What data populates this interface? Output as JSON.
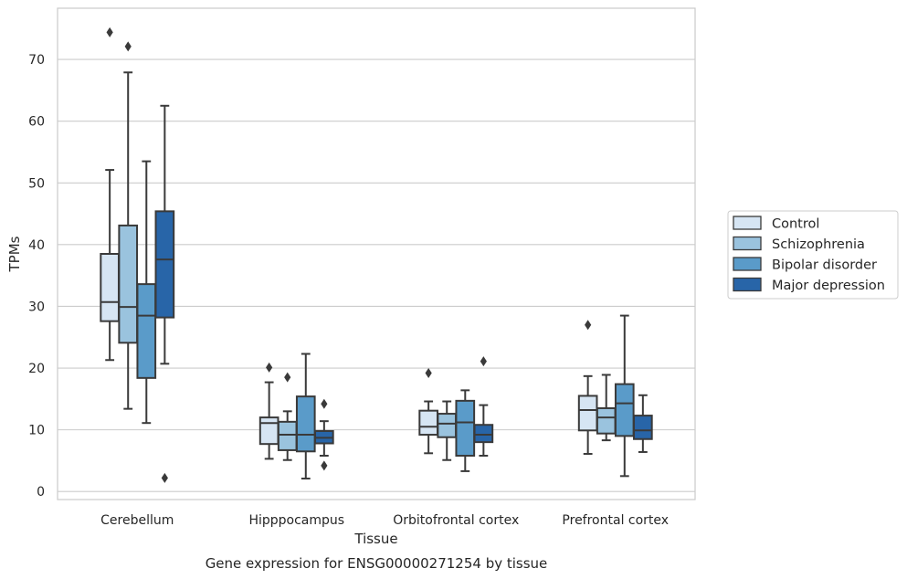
{
  "chart_data": {
    "type": "box",
    "title": "",
    "caption": "Gene expression for ENSG00000271254 by tissue",
    "xlabel": "Tissue",
    "ylabel": "TPMs",
    "ylim": [
      -1.3,
      78.3
    ],
    "yticks": [
      0,
      10,
      20,
      30,
      40,
      50,
      60,
      70
    ],
    "grid": true,
    "legend_position": "right, outside plot area",
    "categories": [
      "Cerebellum",
      "Hipppocampus",
      "Orbitofrontal cortex",
      "Prefrontal cortex"
    ],
    "series": [
      {
        "name": "Control",
        "color": "#d6e5f3",
        "boxes": [
          {
            "whislo": 21.3,
            "q1": 27.6,
            "med": 30.7,
            "q3": 38.5,
            "whishi": 52.1,
            "fliers": [
              74.4
            ]
          },
          {
            "whislo": 5.3,
            "q1": 7.7,
            "med": 11.1,
            "q3": 12.0,
            "whishi": 17.7,
            "fliers": [
              20.1
            ]
          },
          {
            "whislo": 6.2,
            "q1": 9.2,
            "med": 10.5,
            "q3": 13.1,
            "whishi": 14.6,
            "fliers": [
              19.2
            ]
          },
          {
            "whislo": 6.1,
            "q1": 9.9,
            "med": 13.2,
            "q3": 15.5,
            "whishi": 18.7,
            "fliers": [
              27.0
            ]
          }
        ]
      },
      {
        "name": "Schizophrenia",
        "color": "#9ac3de",
        "boxes": [
          {
            "whislo": 13.4,
            "q1": 24.1,
            "med": 29.9,
            "q3": 43.1,
            "whishi": 67.9,
            "fliers": [
              72.1
            ]
          },
          {
            "whislo": 5.1,
            "q1": 6.7,
            "med": 9.2,
            "q3": 11.3,
            "whishi": 13.0,
            "fliers": [
              18.5
            ]
          },
          {
            "whislo": 5.1,
            "q1": 8.8,
            "med": 11.0,
            "q3": 12.6,
            "whishi": 14.6,
            "fliers": []
          },
          {
            "whislo": 8.3,
            "q1": 9.4,
            "med": 12.0,
            "q3": 13.5,
            "whishi": 18.9,
            "fliers": []
          }
        ]
      },
      {
        "name": "Bipolar disorder",
        "color": "#5a9bc9",
        "boxes": [
          {
            "whislo": 11.1,
            "q1": 18.4,
            "med": 28.5,
            "q3": 33.6,
            "whishi": 53.5,
            "fliers": []
          },
          {
            "whislo": 2.1,
            "q1": 6.5,
            "med": 9.2,
            "q3": 15.4,
            "whishi": 22.3,
            "fliers": []
          },
          {
            "whislo": 3.3,
            "q1": 5.8,
            "med": 11.2,
            "q3": 14.7,
            "whishi": 16.4,
            "fliers": []
          },
          {
            "whislo": 2.5,
            "q1": 9.0,
            "med": 14.3,
            "q3": 17.4,
            "whishi": 28.5,
            "fliers": []
          }
        ]
      },
      {
        "name": "Major depression",
        "color": "#2865a8",
        "boxes": [
          {
            "whislo": 20.7,
            "q1": 28.2,
            "med": 37.6,
            "q3": 45.4,
            "whishi": 62.5,
            "fliers": [
              2.2
            ]
          },
          {
            "whislo": 5.8,
            "q1": 7.8,
            "med": 8.7,
            "q3": 9.8,
            "whishi": 11.4,
            "fliers": [
              14.2,
              4.2
            ]
          },
          {
            "whislo": 5.8,
            "q1": 8.0,
            "med": 9.2,
            "q3": 10.8,
            "whishi": 14.0,
            "fliers": [
              21.1
            ]
          },
          {
            "whislo": 6.4,
            "q1": 8.5,
            "med": 9.9,
            "q3": 12.3,
            "whishi": 15.6,
            "fliers": []
          }
        ]
      }
    ]
  }
}
